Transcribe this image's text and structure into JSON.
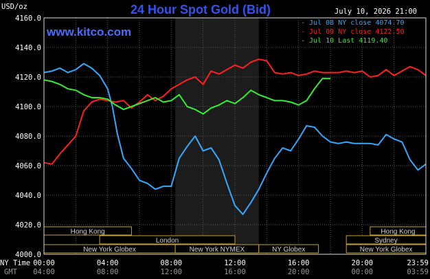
{
  "header": {
    "title": "24 Hour Spot Gold (Bid)",
    "y_unit": "USD/oz",
    "timestamp": "July 10, 2026 21:00",
    "website": "www.kitco.com"
  },
  "legend": [
    {
      "label": "Jul 08 NY close 4074.70",
      "color": "#33aaff"
    },
    {
      "label": "Jul 09 NY close 4122.50",
      "color": "#ff2020"
    },
    {
      "label": "Jul 10 Last 4119.40",
      "color": "#33ee33"
    }
  ],
  "axis": {
    "y_ticks": [
      "4160.0",
      "4140.0",
      "4120.0",
      "4100.0",
      "4080.0",
      "4060.0",
      "4040.0",
      "4020.0",
      "4000.0"
    ],
    "x_row_label_1": "NY Time",
    "x_row_label_2": "GMT",
    "x_ticks_ny": [
      "00:00",
      "04:00",
      "08:00",
      "12:00",
      "16:00",
      "20:00",
      "23:59"
    ],
    "x_ticks_gmt": [
      "04:00",
      "08:00",
      "12:00",
      "16:00",
      "20:00",
      "00:00",
      "03:59"
    ]
  },
  "sessions": [
    {
      "label": "Hong Kong",
      "row": 0,
      "start": 0.0,
      "end": 5.5
    },
    {
      "label": "Sydney",
      "row": 1,
      "start": 19.0,
      "end": 24.0
    },
    {
      "label": "London",
      "row": 1,
      "start": 3.5,
      "end": 12.0
    },
    {
      "label": "New York Globex",
      "row": 2,
      "start": 0.0,
      "end": 8.25
    },
    {
      "label": "New York NYMEX",
      "row": 2,
      "start": 8.25,
      "end": 13.5
    },
    {
      "label": "NY Globex",
      "row": 2,
      "start": 13.5,
      "end": 17.25
    },
    {
      "label": "Hong Kong",
      "row": 0,
      "start": 20.5,
      "end": 24.0
    },
    {
      "label": "New York Globex",
      "row": 2,
      "start": 19.0,
      "end": 24.0
    }
  ],
  "chart_data": {
    "type": "line",
    "title": "24 Hour Spot Gold (Bid)",
    "ylabel": "USD/oz",
    "xlabel": "NY Time",
    "x_unit": "hours (NY time)",
    "xlim": [
      0,
      24
    ],
    "ylim": [
      4000,
      4160
    ],
    "grid": true,
    "legend_position": "top-right",
    "highlight_region": [
      8.25,
      13.5
    ],
    "series": [
      {
        "name": "Jul 08 NY close 4074.70",
        "color": "#33aaff",
        "x": [
          0,
          0.5,
          1,
          1.5,
          2,
          2.5,
          3,
          3.5,
          4,
          4.3,
          4.6,
          5,
          5.5,
          6,
          6.5,
          7,
          7.5,
          8,
          8.5,
          9,
          9.5,
          10,
          10.5,
          11,
          11.5,
          12,
          12.5,
          13,
          13.5,
          14,
          14.5,
          15,
          15.5,
          16,
          16.5,
          17,
          17.5,
          18,
          18.5,
          19,
          19.5,
          20,
          20.5,
          21,
          21.5,
          22,
          22.5,
          23,
          23.5,
          24
        ],
        "values": [
          4123,
          4124,
          4126,
          4123,
          4125,
          4129,
          4126,
          4121,
          4112,
          4100,
          4082,
          4065,
          4058,
          4050,
          4048,
          4044,
          4046,
          4046,
          4065,
          4073,
          4080,
          4070,
          4072,
          4064,
          4048,
          4033,
          4027,
          4035,
          4044,
          4055,
          4065,
          4072,
          4070,
          4078,
          4087,
          4086,
          4080,
          4076,
          4075,
          4076,
          4075,
          4075,
          4075,
          4074,
          4081,
          4078,
          4076,
          4064,
          4057,
          4061
        ]
      },
      {
        "name": "Jul 09 NY close 4122.50",
        "color": "#ff2020",
        "x": [
          0,
          0.5,
          1,
          1.5,
          2,
          2.5,
          3,
          3.5,
          4,
          4.5,
          5,
          5.5,
          6,
          6.5,
          7,
          7.5,
          8,
          8.5,
          9,
          9.5,
          10,
          10.5,
          11,
          11.5,
          12,
          12.5,
          13,
          13.5,
          14,
          14.5,
          15,
          15.5,
          16,
          16.5,
          17,
          17.5,
          18,
          18.5,
          19,
          19.5,
          20,
          20.5,
          21,
          21.5,
          22,
          22.5,
          23,
          23.5,
          24
        ],
        "values": [
          4062,
          4061,
          4068,
          4074,
          4080,
          4097,
          4103,
          4105,
          4104,
          4103,
          4104,
          4099,
          4103,
          4108,
          4104,
          4107,
          4112,
          4115,
          4118,
          4120,
          4115,
          4124,
          4122,
          4125,
          4128,
          4126,
          4130,
          4132,
          4131,
          4123,
          4122,
          4123,
          4121,
          4122,
          4124,
          4123,
          4123,
          4123,
          4124,
          4123,
          4124,
          4120,
          4121,
          4125,
          4121,
          4124,
          4127,
          4125,
          4121
        ]
      },
      {
        "name": "Jul 10 Last 4119.40",
        "color": "#33ee33",
        "x": [
          0,
          0.5,
          1,
          1.5,
          2,
          2.5,
          3,
          3.5,
          4,
          4.5,
          5,
          5.5,
          6,
          6.5,
          7,
          7.5,
          8,
          8.5,
          9,
          9.5,
          10,
          10.5,
          11,
          11.5,
          12,
          12.5,
          13,
          13.5,
          14,
          14.5,
          15,
          15.5,
          16,
          16.5,
          17,
          17.5,
          18
        ],
        "values": [
          4118,
          4117,
          4115,
          4112,
          4111,
          4108,
          4106,
          4106,
          4105,
          4101,
          4098,
          4100,
          4102,
          4104,
          4106,
          4103,
          4104,
          4108,
          4100,
          4098,
          4095,
          4099,
          4101,
          4104,
          4102,
          4106,
          4111,
          4108,
          4106,
          4104,
          4104,
          4103,
          4101,
          4104,
          4112,
          4119,
          4119
        ]
      }
    ]
  }
}
